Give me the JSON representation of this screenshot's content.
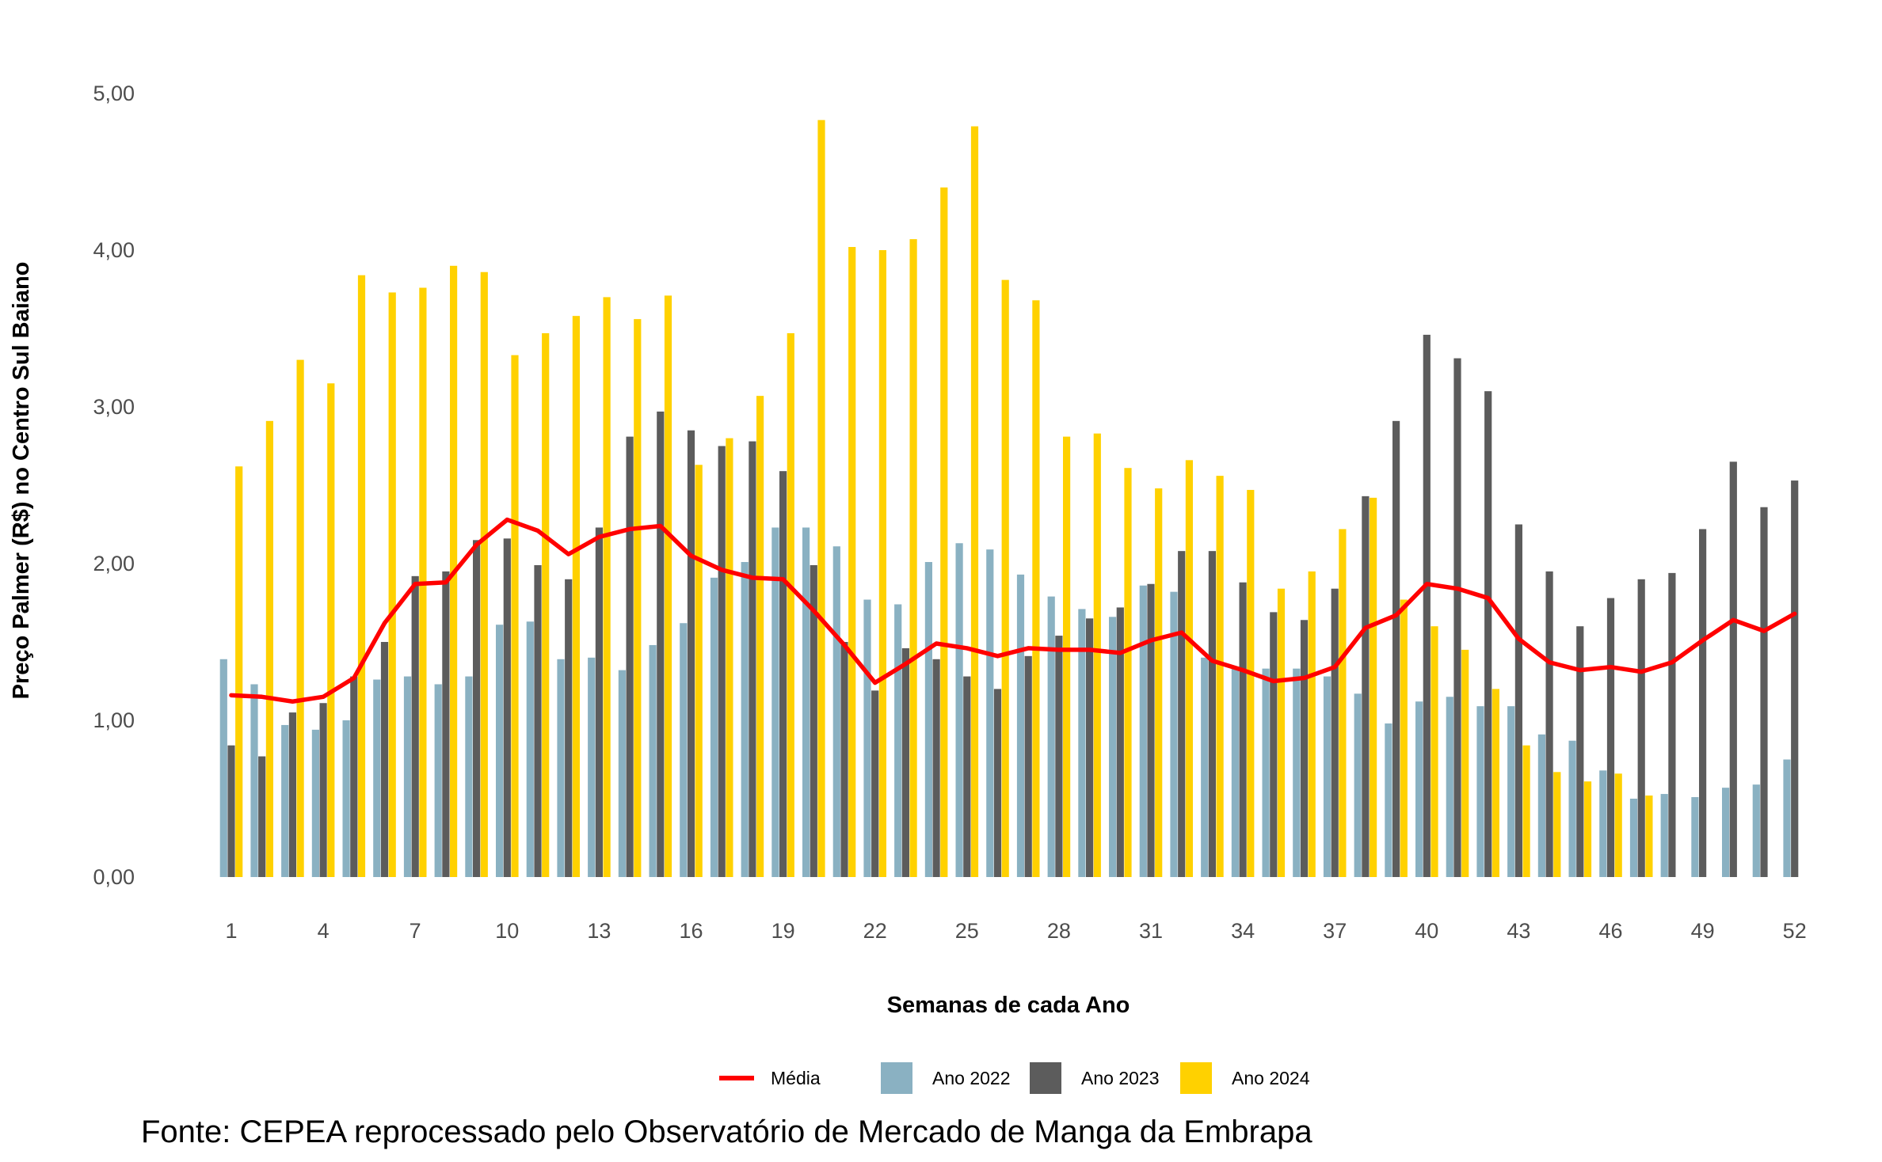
{
  "chart_data": {
    "type": "bar",
    "xlabel": "Semanas de cada Ano",
    "ylabel": "Preço Palmer (R$) no Centro Sul Baiano",
    "ylim": [
      0,
      5
    ],
    "y_ticks": [
      "0,00",
      "1,00",
      "2,00",
      "3,00",
      "4,00",
      "5,00"
    ],
    "x_ticks": [
      1,
      4,
      7,
      10,
      13,
      16,
      19,
      22,
      25,
      28,
      31,
      34,
      37,
      40,
      43,
      46,
      49,
      52
    ],
    "grid": false,
    "legend_position": "bottom",
    "categories": [
      1,
      2,
      3,
      4,
      5,
      6,
      7,
      8,
      9,
      10,
      11,
      12,
      13,
      14,
      15,
      16,
      17,
      18,
      19,
      20,
      21,
      22,
      23,
      24,
      25,
      26,
      27,
      28,
      29,
      30,
      31,
      32,
      33,
      34,
      35,
      36,
      37,
      38,
      39,
      40,
      41,
      42,
      43,
      44,
      45,
      46,
      47,
      48,
      49,
      50,
      51,
      52
    ],
    "series": [
      {
        "name": "Ano 2022",
        "color": "#8AB1C2",
        "values": [
          1.39,
          1.23,
          0.97,
          0.94,
          1.0,
          1.26,
          1.28,
          1.23,
          1.28,
          1.61,
          1.63,
          1.39,
          1.4,
          1.32,
          1.48,
          1.62,
          1.91,
          2.01,
          2.23,
          2.23,
          2.11,
          1.77,
          1.74,
          2.01,
          2.13,
          2.09,
          1.93,
          1.79,
          1.71,
          1.66,
          1.86,
          1.82,
          1.4,
          1.34,
          1.33,
          1.33,
          1.28,
          1.17,
          0.98,
          1.12,
          1.15,
          1.09,
          1.09,
          0.91,
          0.87,
          0.68,
          0.5,
          0.53,
          0.51,
          0.57,
          0.59,
          0.75
        ]
      },
      {
        "name": "Ano 2023",
        "color": "#5C5C5C",
        "values": [
          0.84,
          0.77,
          1.05,
          1.11,
          1.28,
          1.5,
          1.92,
          1.95,
          2.15,
          2.16,
          1.99,
          1.9,
          2.23,
          2.81,
          2.97,
          2.85,
          2.75,
          2.78,
          2.59,
          1.99,
          1.5,
          1.19,
          1.46,
          1.39,
          1.28,
          1.2,
          1.41,
          1.54,
          1.65,
          1.72,
          1.87,
          2.08,
          2.08,
          1.88,
          1.69,
          1.64,
          1.84,
          2.43,
          2.91,
          3.46,
          3.31,
          3.1,
          2.25,
          1.95,
          1.6,
          1.78,
          1.9,
          1.94,
          2.22,
          2.65,
          2.36,
          2.53
        ]
      },
      {
        "name": "Ano 2024",
        "color": "#FFD100",
        "values": [
          2.62,
          2.91,
          3.3,
          3.15,
          3.84,
          3.73,
          3.76,
          3.9,
          3.86,
          3.33,
          3.47,
          3.58,
          3.7,
          3.56,
          3.71,
          2.63,
          2.8,
          3.07,
          3.47,
          4.83,
          4.02,
          4.0,
          4.07,
          4.4,
          4.79,
          3.81,
          3.68,
          2.81,
          2.83,
          2.61,
          2.48,
          2.66,
          2.56,
          2.47,
          1.84,
          1.95,
          2.22,
          2.42,
          1.77,
          1.6,
          1.45,
          1.2,
          0.84,
          0.67,
          0.61,
          0.66,
          0.52,
          null,
          null,
          null,
          null,
          null
        ]
      },
      {
        "name": "Média",
        "type": "line",
        "color": "#FF0000",
        "values": [
          1.16,
          1.15,
          1.12,
          1.15,
          1.27,
          1.62,
          1.87,
          1.88,
          2.12,
          2.28,
          2.21,
          2.06,
          2.17,
          2.22,
          2.24,
          2.05,
          1.96,
          1.91,
          1.9,
          1.7,
          1.48,
          1.24,
          1.36,
          1.49,
          1.46,
          1.41,
          1.46,
          1.45,
          1.45,
          1.43,
          1.51,
          1.56,
          1.38,
          1.32,
          1.25,
          1.27,
          1.34,
          1.59,
          1.67,
          1.87,
          1.84,
          1.78,
          1.52,
          1.37,
          1.32,
          1.34,
          1.31,
          1.37,
          1.51,
          1.64,
          1.57,
          1.68
        ]
      }
    ]
  },
  "legend": {
    "items": [
      {
        "label": "Média",
        "color": "#FF0000",
        "shape": "line"
      },
      {
        "label": "Ano 2022",
        "color": "#8AB1C2",
        "shape": "box"
      },
      {
        "label": "Ano 2023",
        "color": "#5C5C5C",
        "shape": "box"
      },
      {
        "label": "Ano 2024",
        "color": "#FFD100",
        "shape": "box"
      }
    ]
  },
  "footer": {
    "source": "Fonte: CEPEA reprocessado pelo Observatório de Mercado de Manga da Embrapa"
  }
}
